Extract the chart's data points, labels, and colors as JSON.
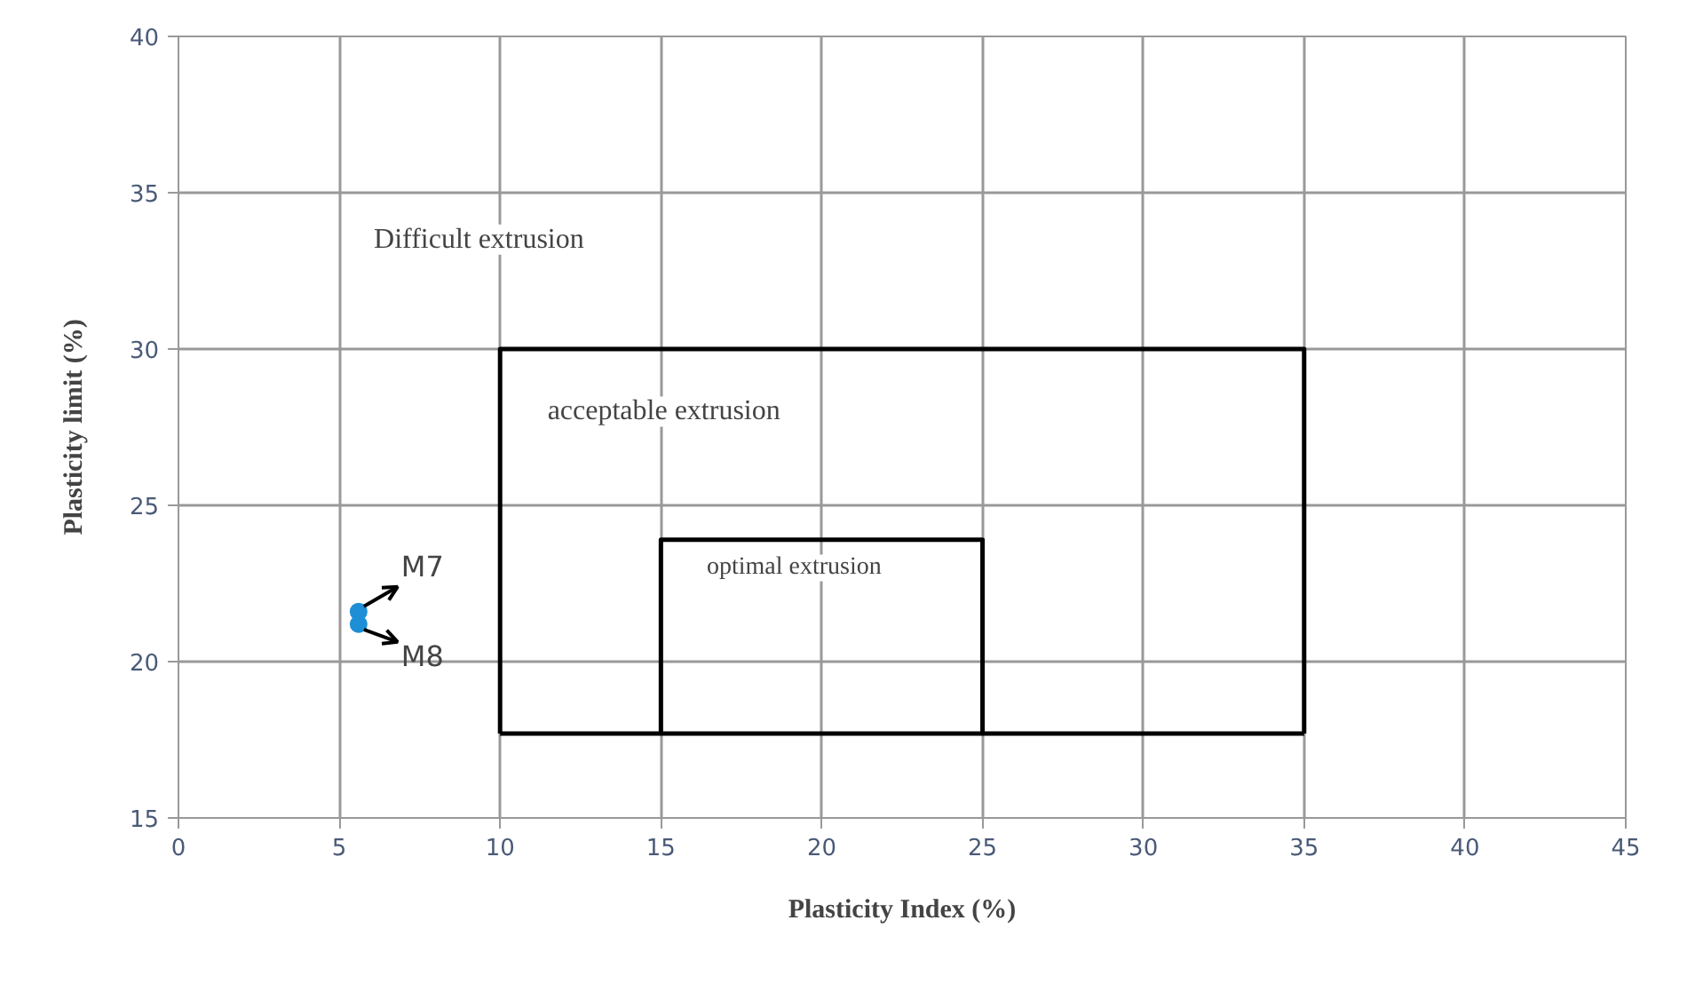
{
  "chart_data": {
    "type": "scatter",
    "xlabel": "Plasticity Index (%)",
    "ylabel": "Plasticity limit (%)",
    "xlim": [
      0,
      45
    ],
    "xticks": [
      0,
      5,
      10,
      15,
      20,
      25,
      30,
      35,
      40,
      45
    ],
    "ylim": [
      15,
      40
    ],
    "yticks": [
      15,
      20,
      25,
      30,
      35,
      40
    ],
    "grid": true,
    "legend": false,
    "marker": "circle",
    "series": [
      {
        "name": "M7",
        "color": "#1e8fd6",
        "x": [
          5.6
        ],
        "values": [
          21.6
        ]
      },
      {
        "name": "M8",
        "color": "#1e8fd6",
        "x": [
          5.6
        ],
        "values": [
          21.2
        ]
      },
      {
        "type": "line",
        "color": "#000000",
        "line_style": "solid",
        "marker": "none",
        "x": [
          10,
          10,
          35,
          35
        ],
        "values": [
          17.7,
          30,
          30,
          17.7
        ]
      },
      {
        "type": "line",
        "color": "#000000",
        "line_style": "solid",
        "marker": "none",
        "x": [
          15,
          15,
          25,
          25
        ],
        "values": [
          17.7,
          23.9,
          23.9,
          17.7
        ]
      },
      {
        "type": "line",
        "color": "#000000",
        "line_style": "solid",
        "marker": "none",
        "x": [
          10,
          35
        ],
        "values": [
          17.7,
          17.7
        ]
      }
    ],
    "annotations": [
      "Difficult extrusion",
      "acceptable extrusion",
      "optimal extrusion"
    ]
  }
}
